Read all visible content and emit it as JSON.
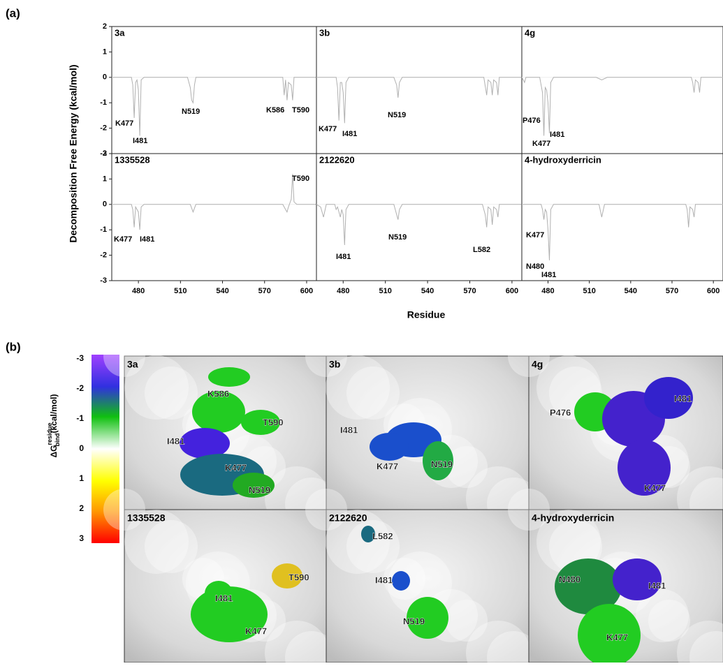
{
  "panel_labels": [
    "(a)",
    "(b)"
  ],
  "axis_labels": {
    "y": "Decomposition  Free Energy (kcal/mol)",
    "x": "Residue"
  },
  "chart_data": [
    {
      "type": "line",
      "title": "3a",
      "color": "#b0b0b0",
      "xlim": [
        461,
        607
      ],
      "ylim": [
        -3,
        2
      ],
      "yticks": [
        2,
        1,
        0,
        -1,
        -2,
        -3
      ],
      "x": [
        461,
        475,
        476,
        477,
        478,
        479,
        480,
        481,
        482,
        484,
        515,
        517,
        518,
        519,
        520,
        521,
        583,
        584,
        585,
        586,
        587,
        589,
        590,
        591,
        607
      ],
      "values": [
        0,
        0,
        -0.3,
        -1.6,
        -0.2,
        -0.1,
        -0.5,
        -2.3,
        -0.1,
        0,
        0,
        -0.4,
        -0.9,
        -1.0,
        -0.3,
        0,
        0,
        -0.7,
        -0.1,
        -0.9,
        -0.2,
        -0.3,
        -0.9,
        0,
        0
      ],
      "annotations": [
        "K477",
        "I481",
        "N519",
        "K586",
        "T590"
      ]
    },
    {
      "type": "line",
      "title": "3b",
      "color": "#b0b0b0",
      "xlim": [
        461,
        607
      ],
      "ylim": [
        -3,
        2
      ],
      "x": [
        461,
        475,
        476,
        477,
        478,
        479,
        480,
        481,
        482,
        484,
        516,
        518,
        519,
        520,
        522,
        580,
        582,
        583,
        585,
        586,
        587,
        589,
        590,
        591,
        607
      ],
      "values": [
        0,
        0,
        -0.4,
        -1.7,
        -0.2,
        -0.2,
        -0.6,
        -1.8,
        -0.2,
        0,
        0,
        -0.3,
        -0.8,
        -0.2,
        0,
        0,
        -0.7,
        -0.1,
        -0.2,
        -0.7,
        -0.1,
        -0.2,
        -0.7,
        0,
        0
      ],
      "annotations": [
        "K477",
        "I481",
        "N519"
      ]
    },
    {
      "type": "line",
      "title": "4g",
      "color": "#b0b0b0",
      "xlim": [
        461,
        607
      ],
      "ylim": [
        -3,
        2
      ],
      "x": [
        461,
        462,
        463,
        464,
        474,
        475,
        476,
        477,
        478,
        479,
        480,
        481,
        482,
        484,
        515,
        519,
        523,
        584,
        585,
        586,
        587,
        589,
        590,
        591,
        607
      ],
      "values": [
        0,
        -0.1,
        -0.2,
        0,
        0,
        -0.3,
        -0.6,
        -2.3,
        -0.4,
        -0.5,
        -1.0,
        -2.2,
        -0.2,
        0,
        0,
        -0.1,
        0,
        0,
        -0.2,
        -0.6,
        -0.1,
        -0.2,
        -0.6,
        0,
        0
      ],
      "annotations": [
        "P476",
        "I481",
        "K477"
      ]
    },
    {
      "type": "line",
      "title": "1335528",
      "color": "#b0b0b0",
      "xlim": [
        461,
        607
      ],
      "ylim": [
        -3,
        2
      ],
      "yticks": [
        2,
        1,
        0,
        -1,
        -2,
        -3
      ],
      "xticks": [
        480,
        510,
        540,
        570,
        600
      ],
      "x": [
        461,
        475,
        476,
        477,
        478,
        480,
        481,
        482,
        484,
        517,
        519,
        521,
        583,
        585,
        586,
        587,
        589,
        590,
        591,
        593,
        607
      ],
      "values": [
        0,
        0,
        -0.2,
        -0.9,
        -0.1,
        -0.3,
        -1.0,
        -0.1,
        0,
        0,
        -0.3,
        0,
        0,
        -0.2,
        -0.3,
        -0.1,
        0.2,
        1.2,
        0.1,
        0,
        0
      ],
      "annotations": [
        "T590",
        "K477",
        "I481"
      ]
    },
    {
      "type": "line",
      "title": "2122620",
      "color": "#b0b0b0",
      "xlim": [
        461,
        607
      ],
      "ylim": [
        -3,
        2
      ],
      "xticks": [
        480,
        510,
        540,
        570,
        600
      ],
      "x": [
        461,
        464,
        466,
        468,
        474,
        475,
        476,
        478,
        479,
        480,
        481,
        482,
        484,
        516,
        518,
        519,
        520,
        522,
        579,
        581,
        582,
        583,
        585,
        586,
        587,
        589,
        590,
        591,
        607
      ],
      "values": [
        0,
        -0.1,
        -0.5,
        0,
        0,
        -0.2,
        -0.1,
        -0.5,
        -0.2,
        -0.4,
        -1.6,
        -0.2,
        0,
        0,
        -0.4,
        -0.6,
        -0.2,
        0,
        0,
        -0.4,
        -0.9,
        -0.1,
        -0.2,
        -0.8,
        -0.1,
        -0.2,
        -0.5,
        0,
        0
      ],
      "annotations": [
        "N519",
        "L582",
        "I481"
      ]
    },
    {
      "type": "line",
      "title": "4-hydroxyderricin",
      "color": "#b0b0b0",
      "xlim": [
        461,
        607
      ],
      "ylim": [
        -3,
        2
      ],
      "xticks": [
        480,
        510,
        540,
        570,
        600
      ],
      "x": [
        461,
        475,
        476,
        477,
        478,
        479,
        480,
        481,
        482,
        484,
        517,
        519,
        521,
        580,
        581,
        582,
        583,
        585,
        586,
        587,
        607
      ],
      "values": [
        0,
        0,
        -0.2,
        -0.6,
        -0.2,
        -0.3,
        -1.0,
        -2.2,
        -0.2,
        0,
        0,
        -0.5,
        0,
        0,
        -0.2,
        -0.9,
        -0.1,
        -0.2,
        -0.5,
        0,
        0
      ],
      "annotations": [
        "K477",
        "N480",
        "I481"
      ]
    }
  ],
  "colorbar": {
    "symbol": "ΔG",
    "sup": "residue",
    "sub": "bind",
    "unit": "(kcal/mol)",
    "lim": [
      -3,
      3
    ],
    "ticks": [
      -3,
      -2,
      -1,
      0,
      1,
      2,
      3
    ]
  },
  "structures": [
    {
      "title": "3a",
      "labels": [
        "K586",
        "T590",
        "I481",
        "K477",
        "N519"
      ]
    },
    {
      "title": "3b",
      "labels": [
        "I481",
        "K477",
        "N519"
      ]
    },
    {
      "title": "4g",
      "labels": [
        "P476",
        "I481",
        "K477"
      ]
    },
    {
      "title": "1335528",
      "labels": [
        "T590",
        "I481",
        "K477"
      ]
    },
    {
      "title": "2122620",
      "labels": [
        "L582",
        "I481",
        "N519"
      ]
    },
    {
      "title": "4-hydroxyderricin",
      "labels": [
        "N480",
        "I481",
        "K477"
      ]
    }
  ]
}
